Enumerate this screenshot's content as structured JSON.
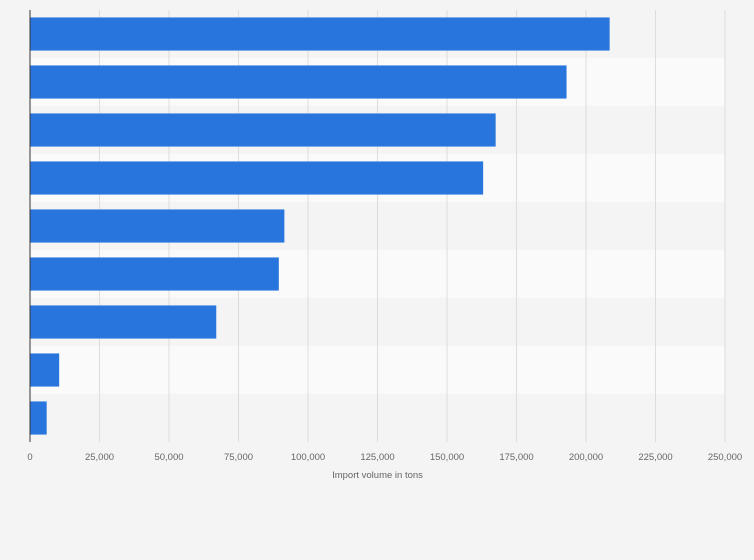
{
  "chart_data": {
    "type": "bar",
    "orientation": "horizontal",
    "title": "",
    "xlabel": "Import volume in tons",
    "ylabel": "",
    "categories": [
      "",
      "",
      "",
      "",
      "",
      "",
      "",
      "",
      ""
    ],
    "values": [
      208500,
      193000,
      167500,
      163000,
      91500,
      89500,
      67000,
      10500,
      6000
    ],
    "xlim": [
      0,
      250000
    ],
    "xticks": [
      0,
      25000,
      50000,
      75000,
      100000,
      125000,
      150000,
      175000,
      200000,
      225000,
      250000
    ],
    "xtick_labels": [
      "0",
      "25,000",
      "50,000",
      "75,000",
      "100,000",
      "125,000",
      "150,000",
      "175,000",
      "200,000",
      "225,000",
      "250,000"
    ],
    "grid": true,
    "legend": "none",
    "colors": {
      "bar": "#2876dd",
      "band_light": "#fafafa",
      "band_dark": "#f4f4f4",
      "grid": "#dddddd",
      "axis": "#333333",
      "background": "#f4f4f4"
    }
  }
}
